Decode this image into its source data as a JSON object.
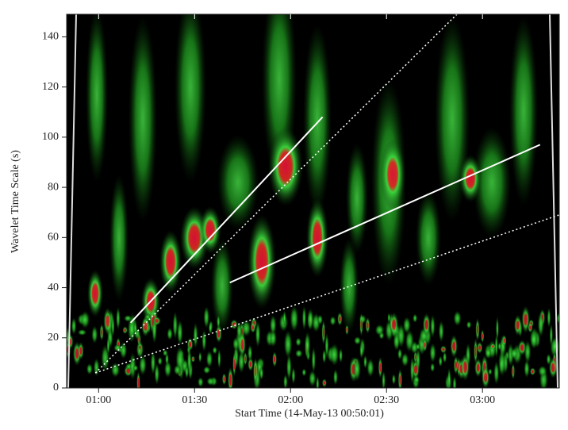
{
  "chart_data": {
    "type": "spectrogram",
    "xlabel": "Start Time (14-May-13 00:50:01)",
    "ylabel": "Wavelet Time Scale (s)",
    "xlim": [
      50,
      204
    ],
    "ylim": [
      0,
      149
    ],
    "xticks": [
      {
        "value": 60,
        "label": "01:00"
      },
      {
        "value": 90,
        "label": "01:30"
      },
      {
        "value": 120,
        "label": "02:00"
      },
      {
        "value": 150,
        "label": "02:30"
      },
      {
        "value": 180,
        "label": "03:00"
      }
    ],
    "yticks": [
      0,
      20,
      40,
      60,
      80,
      100,
      120,
      140
    ],
    "lines": [
      {
        "style": "solid",
        "color": "#ffffff",
        "x": [
          70,
          130
        ],
        "values": [
          26,
          108
        ]
      },
      {
        "style": "solid",
        "color": "#ffffff",
        "x": [
          101,
          198
        ],
        "values": [
          42,
          97
        ]
      },
      {
        "style": "dotted",
        "color": "#ffffff",
        "x": [
          59,
          172
        ],
        "values": [
          6,
          149
        ]
      },
      {
        "style": "dotted",
        "color": "#ffffff",
        "x": [
          59,
          204
        ],
        "values": [
          6,
          69
        ]
      }
    ]
  }
}
